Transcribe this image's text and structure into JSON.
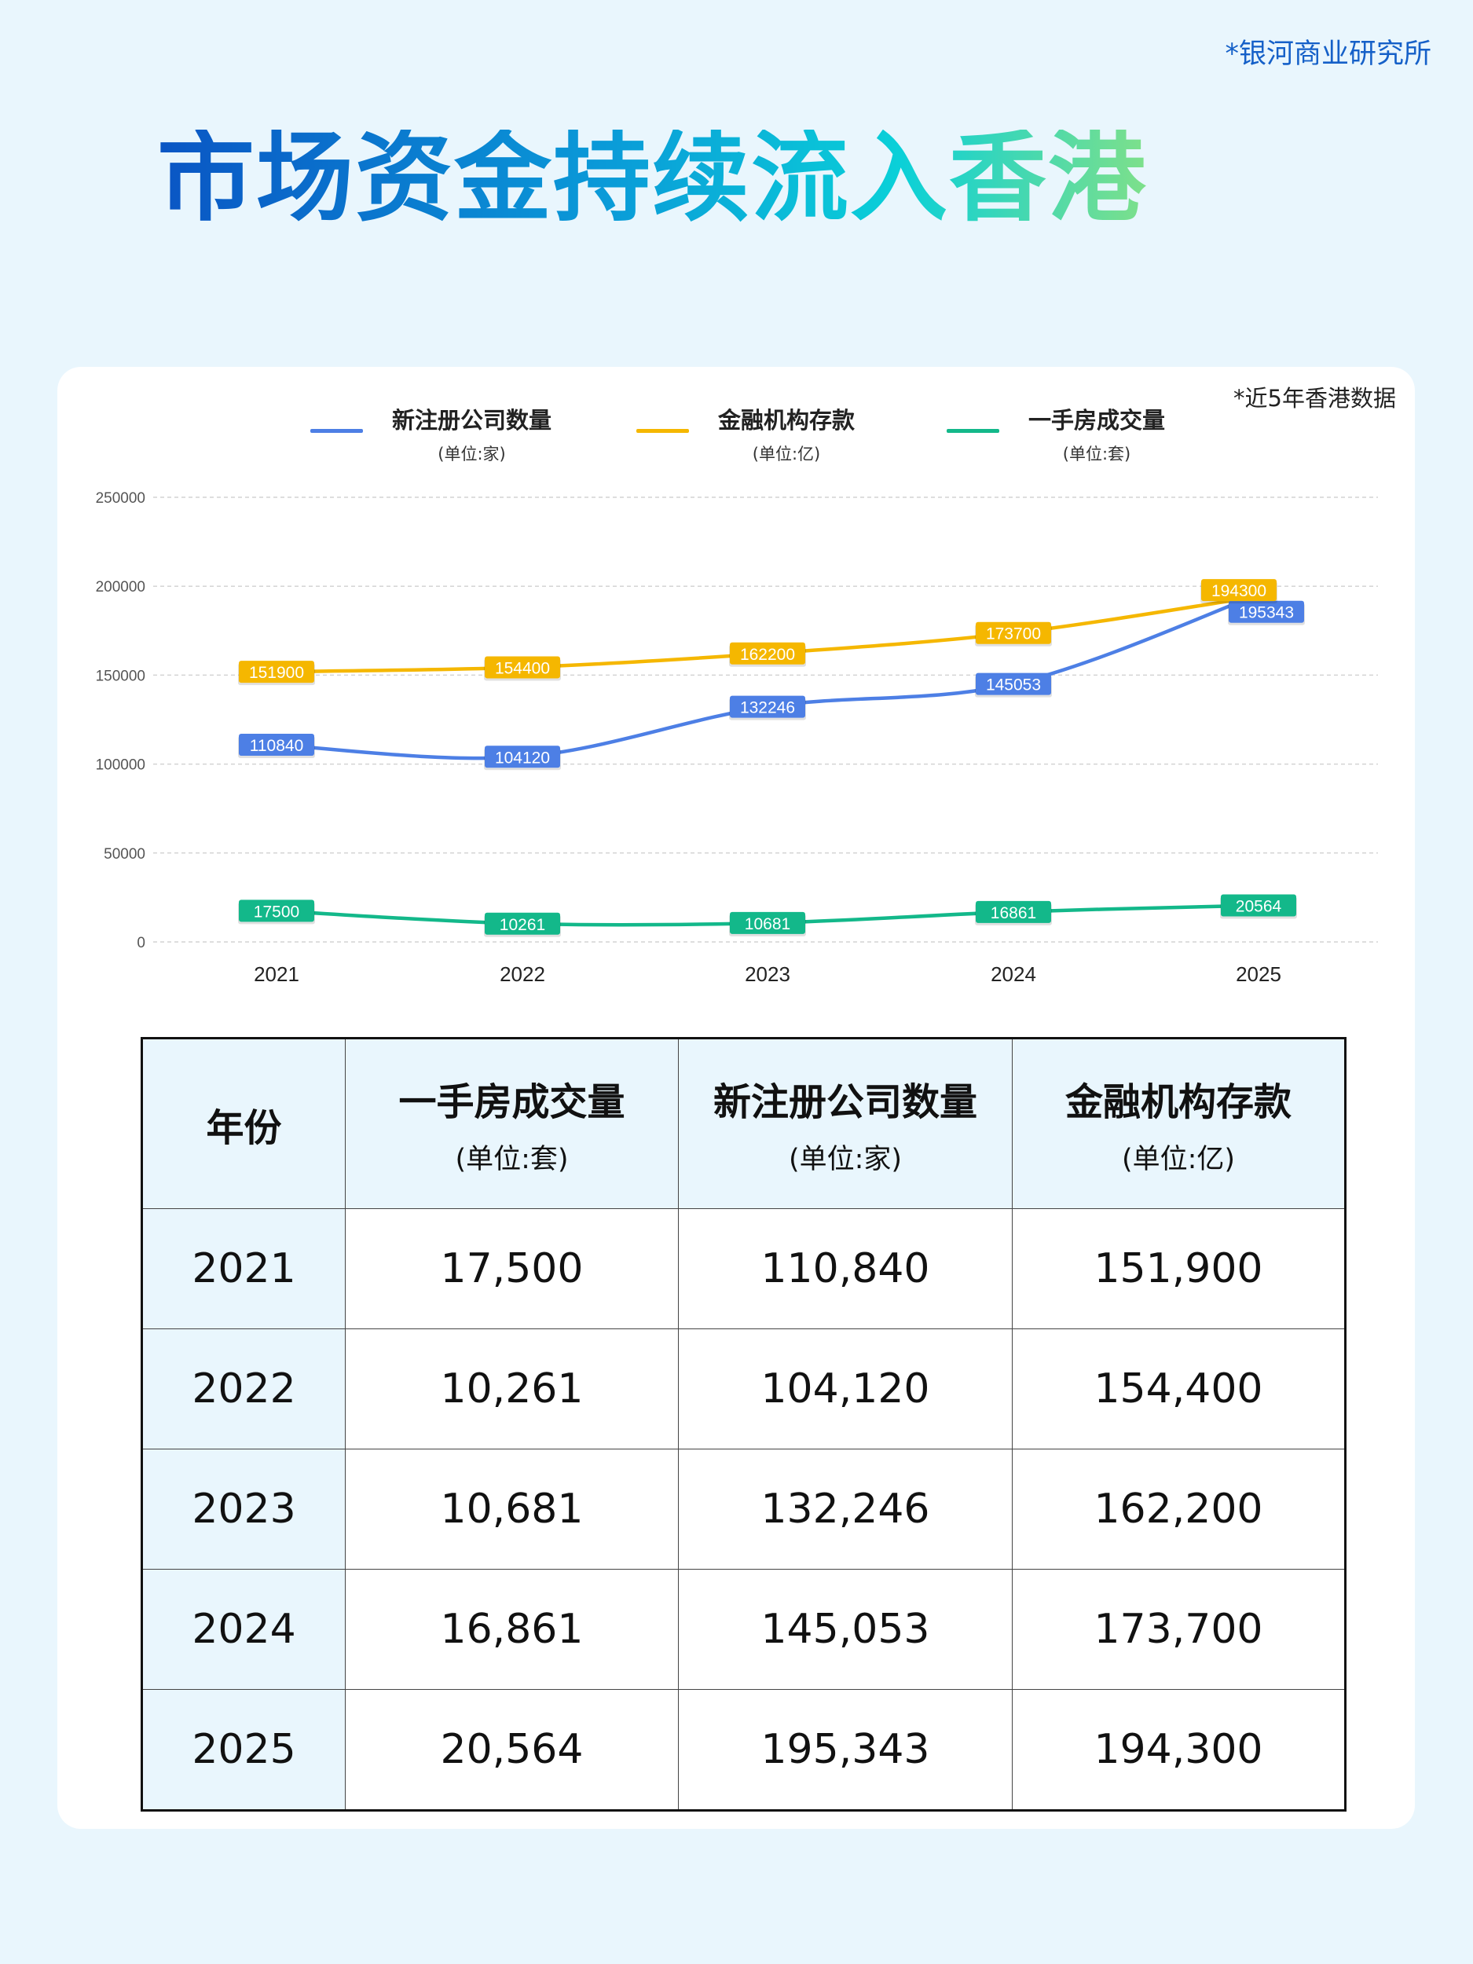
{
  "source": "*银河商业研究所",
  "title": "市场资金持续流入香港",
  "note": "*近5年香港数据",
  "colors": {
    "blue": "#4d7fe5",
    "yellow": "#f5b700",
    "green": "#13b88a",
    "background": "#e9f6fd"
  },
  "legend": [
    {
      "name": "新注册公司数量",
      "unit": "(单位:家)",
      "color": "#4d7fe5"
    },
    {
      "name": "金融机构存款",
      "unit": "(单位:亿)",
      "color": "#f5b700"
    },
    {
      "name": "一手房成交量",
      "unit": "(单位:套)",
      "color": "#13b88a"
    }
  ],
  "chart_data": {
    "type": "line",
    "categories": [
      "2021",
      "2022",
      "2023",
      "2024",
      "2025"
    ],
    "ylim": [
      0,
      250000
    ],
    "yticks": [
      "0",
      "50000",
      "100000",
      "150000",
      "200000",
      "250000"
    ],
    "grid": true,
    "legend_position": "top",
    "series": [
      {
        "name": "新注册公司数量",
        "color": "#4d7fe5",
        "values": [
          110840,
          104120,
          132246,
          145053,
          195343
        ]
      },
      {
        "name": "金融机构存款",
        "color": "#f5b700",
        "values": [
          151900,
          154400,
          162200,
          173700,
          194300
        ]
      },
      {
        "name": "一手房成交量",
        "color": "#13b88a",
        "values": [
          17500,
          10261,
          10681,
          16861,
          20564
        ]
      }
    ]
  },
  "table": {
    "headers": [
      {
        "label": "年份",
        "unit": ""
      },
      {
        "label": "一手房成交量",
        "unit": "(单位:套)"
      },
      {
        "label": "新注册公司数量",
        "unit": "(单位:家)"
      },
      {
        "label": "金融机构存款",
        "unit": "(单位:亿)"
      }
    ],
    "rows": [
      [
        "2021",
        "17,500",
        "110,840",
        "151,900"
      ],
      [
        "2022",
        "10,261",
        "104,120",
        "154,400"
      ],
      [
        "2023",
        "10,681",
        "132,246",
        "162,200"
      ],
      [
        "2024",
        "16,861",
        "145,053",
        "173,700"
      ],
      [
        "2025",
        "20,564",
        "195,343",
        "194,300"
      ]
    ]
  }
}
